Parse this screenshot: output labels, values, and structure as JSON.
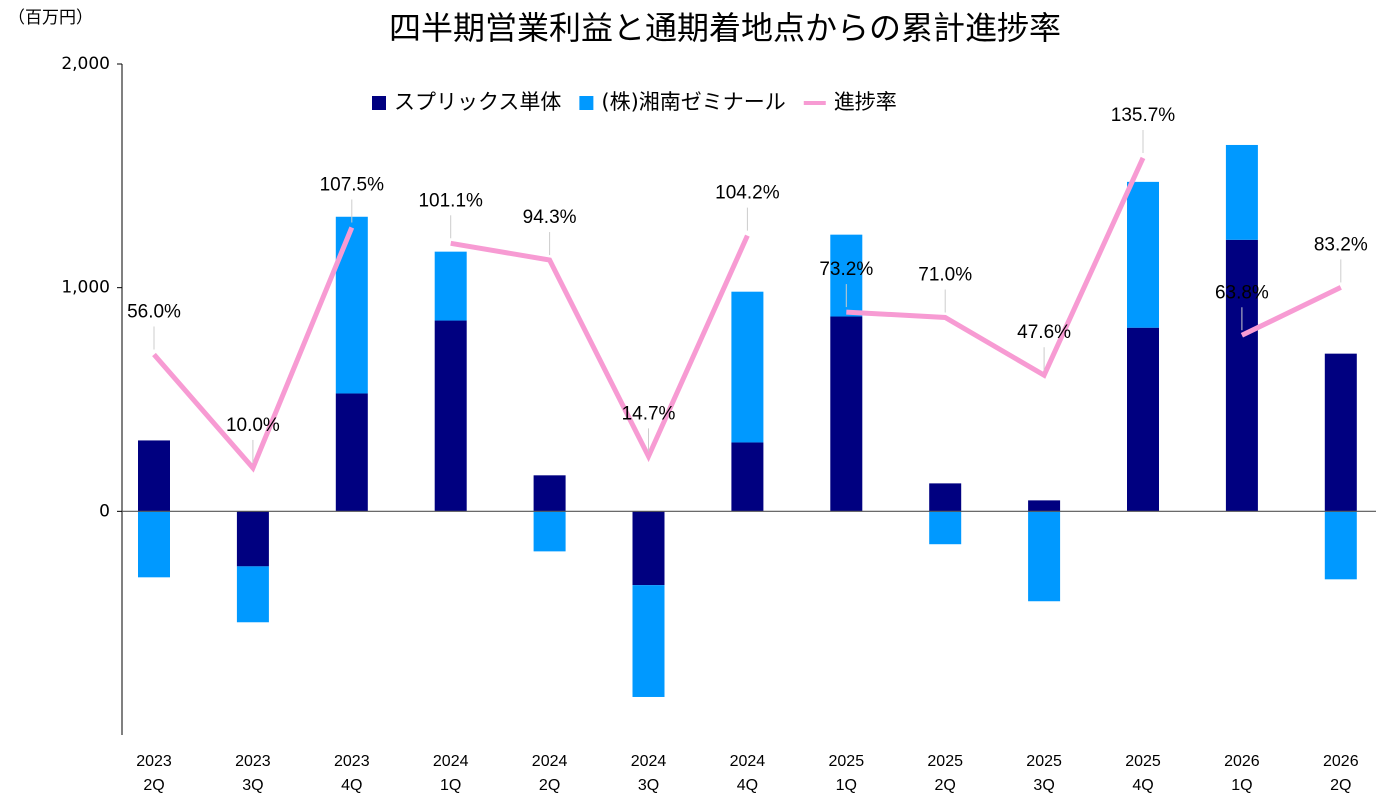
{
  "chart_data": {
    "type": "stacked-bar-line",
    "title": "四半期営業利益と通期着地点からの累計進捗率",
    "y_axis_label": "（百万円）",
    "categories": [
      "2023\n2Q",
      "2023\n3Q",
      "2023\n4Q",
      "2024\n1Q",
      "2024\n2Q",
      "2024\n3Q",
      "2024\n4Q",
      "2025\n1Q",
      "2025\n2Q",
      "2025\n3Q",
      "2025\n4Q",
      "2026\n1Q",
      "2026\n2Q"
    ],
    "series": [
      {
        "name": "スプリックス単体",
        "type": "bar",
        "color": "#000080",
        "values": [
          317,
          -246,
          527,
          853,
          161,
          -330,
          308,
          871,
          125,
          49,
          821,
          1214,
          705
        ]
      },
      {
        "name": "(株)湘南ゼミナール",
        "type": "bar",
        "color": "#0099ff",
        "values": [
          -295,
          -250,
          790,
          308,
          -179,
          -500,
          674,
          366,
          -147,
          -402,
          652,
          424,
          -304
        ]
      },
      {
        "name": "進捗率",
        "type": "line",
        "axis": "y2",
        "color": "#f79bd3",
        "values": [
          56.0,
          10.0,
          107.5,
          101.1,
          94.3,
          14.7,
          104.2,
          73.2,
          71.0,
          47.6,
          135.7,
          63.8,
          83.2
        ],
        "value_labels": [
          "56.0%",
          "10.0%",
          "107.5%",
          "101.1%",
          "94.3%",
          "14.7%",
          "104.2%",
          "73.2%",
          "71.0%",
          "47.6%",
          "135.7%",
          "63.8%",
          "83.2%"
        ],
        "line_breaks": [
          3,
          7,
          11
        ]
      }
    ],
    "ylim": [
      -1000,
      2000
    ],
    "yticks": [
      {
        "value": 0,
        "label": "0"
      },
      {
        "value": 1000,
        "label": "1,000"
      },
      {
        "value": 2000,
        "label": "2,000"
      }
    ],
    "y2lim": [
      -98.3,
      173.8
    ],
    "legend": "top"
  }
}
